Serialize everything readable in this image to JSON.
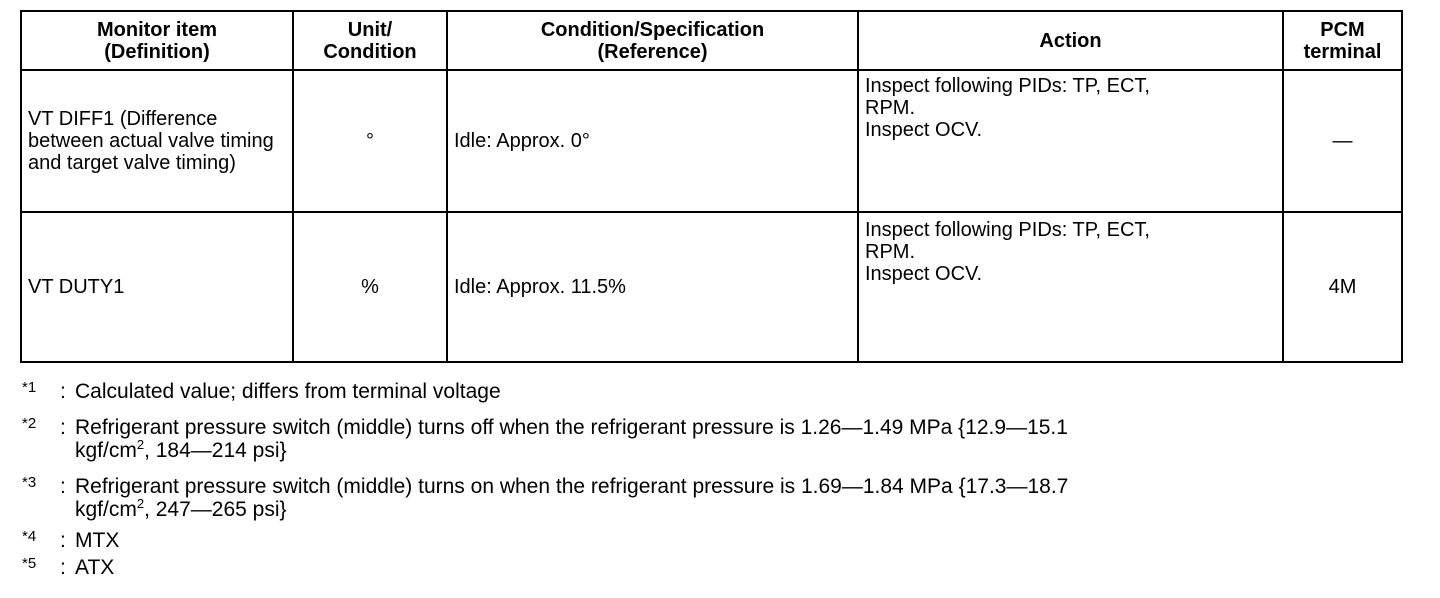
{
  "table": {
    "headers": [
      "Monitor item\n(Definition)",
      "Unit/\nCondition",
      "Condition/Specification\n(Reference)",
      "Action",
      "PCM\nterminal"
    ],
    "header_lines": [
      [
        "Monitor item",
        "(Definition)"
      ],
      [
        "Unit/",
        "Condition"
      ],
      [
        "Condition/Specification",
        "(Reference)"
      ],
      [
        "Action"
      ],
      [
        "PCM",
        "terminal"
      ]
    ],
    "rows": [
      {
        "item": "VT DIFF1 (Difference between actual valve timing and target valve timing)",
        "unit": "°",
        "condition": "Idle: Approx. 0°",
        "action_lines": [
          "Inspect following PIDs: TP, ECT,",
          "RPM.",
          "Inspect OCV."
        ],
        "terminal": "—"
      },
      {
        "item": "VT DUTY1",
        "unit": "%",
        "condition": "Idle: Approx. 11.5%",
        "action_lines": [
          "Inspect following PIDs: TP, ECT,",
          "RPM.",
          "Inspect OCV."
        ],
        "terminal": "4M"
      }
    ]
  },
  "footnotes": [
    {
      "mark": "*1",
      "lines": [
        {
          "a": "Calculated value; differs from terminal voltage"
        }
      ]
    },
    {
      "mark": "*2",
      "lines": [
        {
          "a": "Refrigerant pressure switch (middle) turns off when the refrigerant pressure is 1.26—1.49 MPa {12.9—15.1"
        },
        {
          "a": "kgf/cm",
          "sup": "2",
          "b": ", 184—214 psi}"
        }
      ]
    },
    {
      "mark": "*3",
      "lines": [
        {
          "a": "Refrigerant pressure switch (middle) turns on when the refrigerant pressure is 1.69—1.84 MPa {17.3—18.7"
        },
        {
          "a": "kgf/cm",
          "sup": "2",
          "b": ", 247—265 psi}"
        }
      ]
    },
    {
      "mark": "*4",
      "lines": [
        {
          "a": "MTX"
        }
      ]
    },
    {
      "mark": "*5",
      "lines": [
        {
          "a": "ATX"
        }
      ]
    }
  ]
}
